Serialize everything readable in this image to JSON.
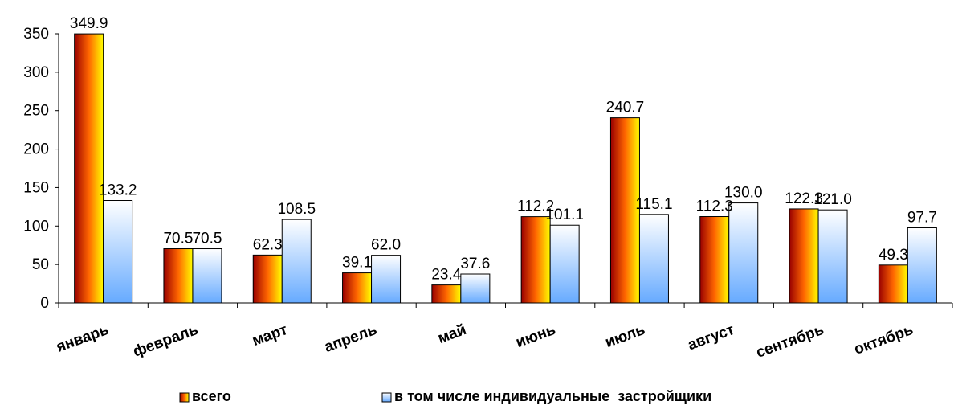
{
  "chart_data": {
    "type": "bar",
    "categories": [
      "январь",
      "февраль",
      "март",
      "апрель",
      "май",
      "июнь",
      "июль",
      "август",
      "сентябрь",
      "октябрь"
    ],
    "series": [
      {
        "name": "всего",
        "values": [
          349.9,
          70.5,
          62.3,
          39.1,
          23.4,
          112.2,
          240.7,
          112.3,
          122.3,
          49.3
        ],
        "labels": [
          "349.9",
          "70.5",
          "62.3",
          "39.1",
          "23.4",
          "112.2",
          "240.7",
          "112.3",
          "122.3",
          "49.3"
        ]
      },
      {
        "name": "в том числе индивидуальные  застройщики",
        "values": [
          133.2,
          70.5,
          108.5,
          62.0,
          37.6,
          101.1,
          115.1,
          130.0,
          121.0,
          97.7
        ],
        "labels": [
          "133.2",
          "70.5",
          "108.5",
          "62.0",
          "37.6",
          "101.1",
          "115.1",
          "130.0",
          "121.0",
          "97.7"
        ]
      }
    ],
    "y_ticks": [
      "0",
      "50",
      "100",
      "150",
      "200",
      "250",
      "300",
      "350"
    ],
    "ylim": [
      0,
      350
    ],
    "grid": false,
    "legend": "bottom",
    "colors": {
      "series0_top": "#ffff00",
      "series0_mid": "#ff6600",
      "series0_bottom": "#990000",
      "series1_top": "#ffffff",
      "series1_bottom": "#66aaff",
      "axis": "#000000"
    }
  }
}
